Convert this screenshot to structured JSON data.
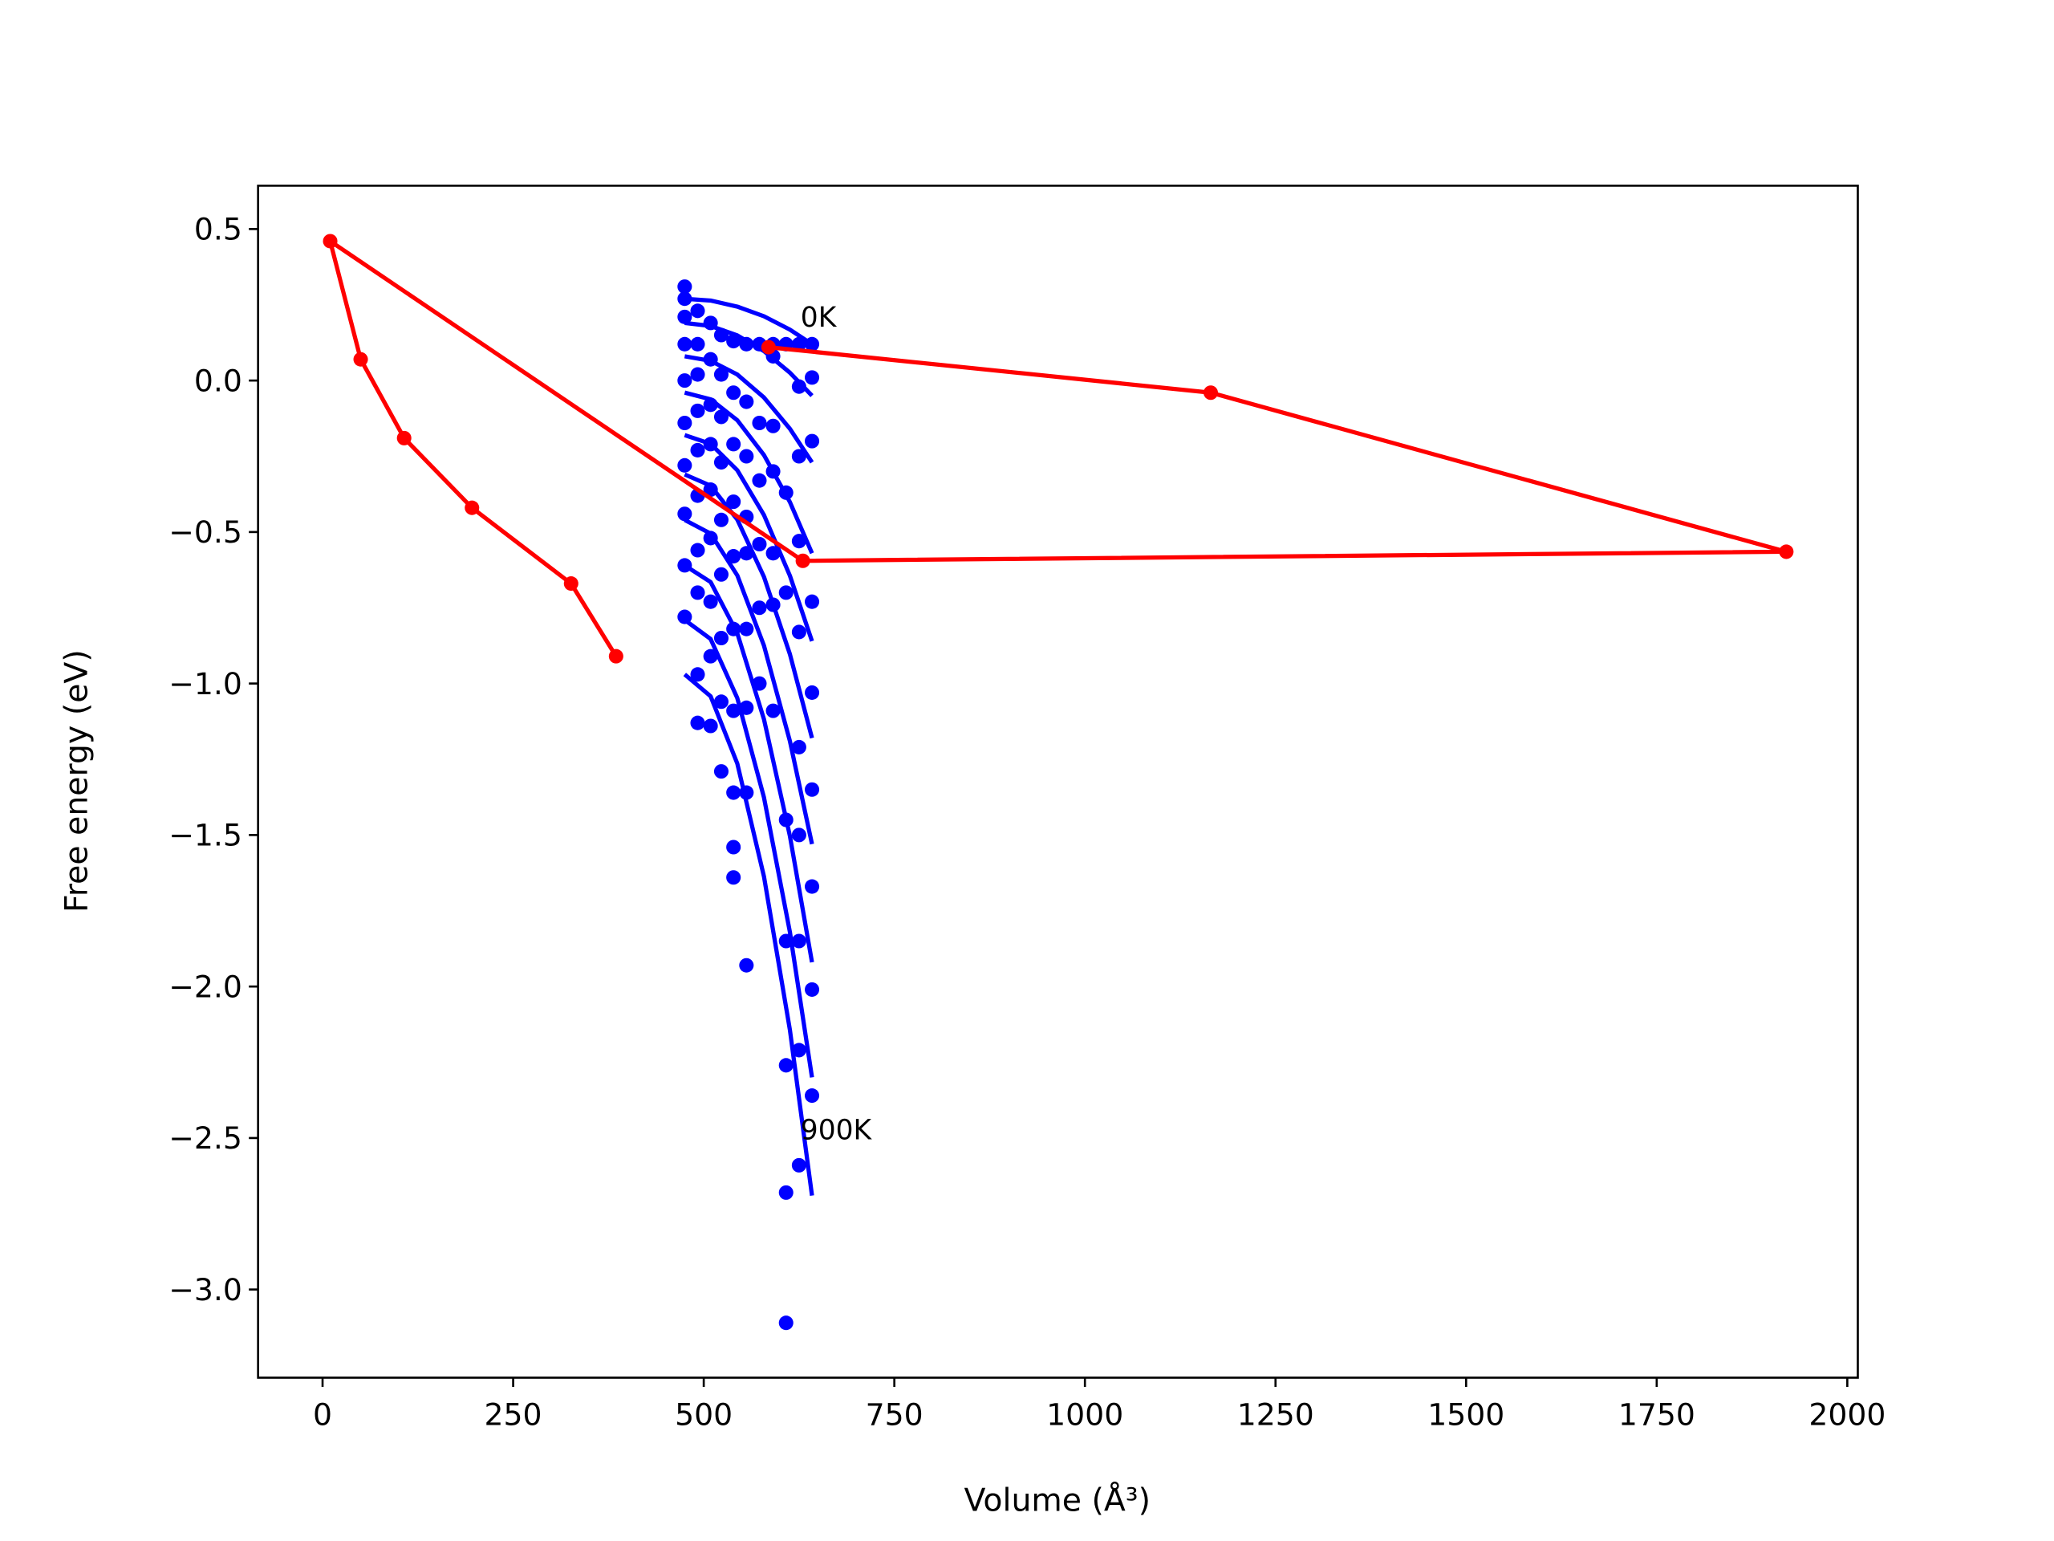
{
  "chart_data": {
    "type": "line",
    "xlabel": "Volume (Å³)",
    "ylabel": "Free energy (eV)",
    "xlim": [
      -84.6,
      2013.8
    ],
    "ylim": [
      -3.291,
      0.643
    ],
    "xticks": [
      0,
      250,
      500,
      750,
      1000,
      1250,
      1500,
      1750,
      2000
    ],
    "yticks": [
      0.5,
      {
        "value": 0.0,
        "label": "0.0"
      },
      {
        "value": -0.5,
        "label": "−0.5"
      },
      {
        "value": -1.0,
        "label": "−1.0"
      },
      {
        "value": -1.5,
        "label": "−1.5"
      },
      {
        "value": -2.0,
        "label": "−2.0"
      },
      {
        "value": -2.5,
        "label": "−2.5"
      },
      {
        "value": -3.0,
        "label": "−3.0"
      }
    ],
    "grid": false,
    "annotations": [
      {
        "text": "0K",
        "x": 627,
        "y": 0.213
      },
      {
        "text": "900K",
        "x": 627,
        "y": -2.47
      }
    ],
    "series": [
      {
        "color": "#0000ff",
        "mode": "markers",
        "x": [
          475,
          475,
          475,
          475,
          475,
          475,
          475,
          475,
          475,
          475,
          492,
          492,
          492,
          492,
          492,
          492,
          492,
          492,
          492,
          492,
          509,
          509,
          509,
          509,
          509,
          509,
          509,
          509,
          509,
          523,
          523,
          523,
          523,
          523,
          523,
          523,
          523,
          523,
          539,
          539,
          539,
          539,
          539,
          539,
          539,
          539,
          539,
          539,
          556,
          556,
          556,
          556,
          556,
          556,
          556,
          556,
          556,
          573,
          573,
          573,
          573,
          573,
          573,
          591,
          591,
          591,
          591,
          591,
          591,
          591,
          608,
          608,
          608,
          608,
          608,
          608,
          608,
          608,
          625,
          625,
          625,
          625,
          625,
          625,
          625,
          625,
          625,
          625,
          642,
          642,
          642,
          642,
          642,
          642,
          642,
          642,
          642
        ],
        "values": [
          0.31,
          0.27,
          0.21,
          0.12,
          0,
          -0.14,
          -0.28,
          -0.44,
          -0.61,
          -0.78,
          0.23,
          0.12,
          0.02,
          -0.1,
          -0.23,
          -0.38,
          -0.56,
          -0.7,
          -0.97,
          -1.13,
          0.19,
          0.07,
          -0.08,
          -0.21,
          -0.36,
          -0.52,
          -0.73,
          -0.91,
          -1.14,
          0.15,
          0.02,
          -0.12,
          -0.27,
          -0.46,
          -0.64,
          -0.85,
          -1.06,
          -1.29,
          0.13,
          -0.04,
          -0.21,
          -0.4,
          -0.58,
          -0.82,
          -1.09,
          -1.36,
          -1.54,
          -1.64,
          0.12,
          -0.07,
          -0.25,
          -0.45,
          -0.57,
          -0.82,
          -1.08,
          -1.36,
          -1.93,
          0.12,
          -0.14,
          -0.33,
          -0.54,
          -0.75,
          -1.0,
          0.12,
          0.08,
          -0.15,
          -0.3,
          -0.57,
          -0.74,
          -1.09,
          0.12,
          -0.37,
          -0.7,
          -1.45,
          -1.85,
          -2.26,
          -2.68,
          -3.11,
          0.12,
          -0.02,
          -0.25,
          -0.53,
          -0.83,
          -1.21,
          -1.5,
          -1.85,
          -2.21,
          -2.59,
          0.12,
          0.01,
          -0.2,
          -0.73,
          -1.03,
          -1.35,
          -1.67,
          -2.01,
          -2.36
        ]
      },
      {
        "color": "#0000ff",
        "mode": "lines",
        "x": [
          475,
          509,
          544,
          579,
          613,
          642
        ],
        "values": [
          0.27,
          0.264,
          0.244,
          0.212,
          0.168,
          0.12
        ]
      },
      {
        "color": "#0000ff",
        "mode": "lines",
        "x": [
          475,
          509,
          544,
          579,
          613,
          642
        ],
        "values": [
          0.19,
          0.18,
          0.149,
          0.097,
          0.026,
          -0.05
        ]
      },
      {
        "color": "#0000ff",
        "mode": "lines",
        "x": [
          475,
          509,
          544,
          579,
          613,
          642
        ],
        "values": [
          0.08,
          0.065,
          0.02,
          -0.056,
          -0.159,
          -0.27
        ]
      },
      {
        "color": "#0000ff",
        "mode": "lines",
        "x": [
          475,
          509,
          544,
          579,
          613,
          642
        ],
        "values": [
          -0.04,
          -0.062,
          -0.131,
          -0.246,
          -0.401,
          -0.57
        ]
      },
      {
        "color": "#0000ff",
        "mode": "lines",
        "x": [
          475,
          509,
          544,
          579,
          613,
          642
        ],
        "values": [
          -0.18,
          -0.209,
          -0.296,
          -0.444,
          -0.644,
          -0.86
        ]
      },
      {
        "color": "#0000ff",
        "mode": "lines",
        "x": [
          475,
          509,
          544,
          579,
          613,
          642
        ],
        "values": [
          -0.31,
          -0.347,
          -0.459,
          -0.648,
          -0.903,
          -1.18
        ]
      },
      {
        "color": "#0000ff",
        "mode": "lines",
        "x": [
          475,
          509,
          544,
          579,
          613,
          642
        ],
        "values": [
          -0.46,
          -0.505,
          -0.643,
          -0.875,
          -1.19,
          -1.53
        ]
      },
      {
        "color": "#0000ff",
        "mode": "lines",
        "x": [
          475,
          509,
          544,
          579,
          613,
          642
        ],
        "values": [
          -0.61,
          -0.665,
          -0.834,
          -1.118,
          -1.503,
          -1.92
        ]
      },
      {
        "color": "#0000ff",
        "mode": "lines",
        "x": [
          475,
          509,
          544,
          579,
          613,
          642
        ],
        "values": [
          -0.79,
          -0.853,
          -1.048,
          -1.376,
          -1.82,
          -2.3
        ]
      },
      {
        "color": "#0000ff",
        "mode": "lines",
        "x": [
          475,
          509,
          544,
          579,
          613,
          642
        ],
        "values": [
          -0.97,
          -1.042,
          -1.264,
          -1.637,
          -2.143,
          -2.69
        ]
      },
      {
        "color": "#ff0000",
        "mode": "lines+markers",
        "x": [
          385,
          326,
          196,
          107,
          50,
          10,
          630,
          1920,
          1165,
          585
        ],
        "values": [
          -0.91,
          -0.67,
          -0.42,
          -0.19,
          0.07,
          0.46,
          -0.595,
          -0.565,
          -0.04,
          0.11
        ]
      }
    ]
  }
}
